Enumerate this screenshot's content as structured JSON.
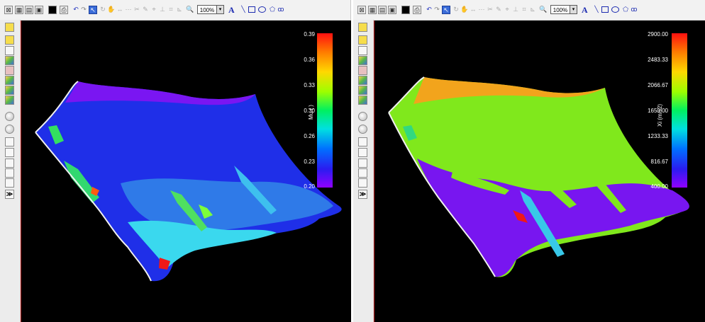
{
  "toolbar": {
    "zoom_value": "100%",
    "text_tool": "A"
  },
  "left_view": {
    "colorbar": {
      "title": "Mu ( )",
      "ticks": [
        "0.39",
        "0.36",
        "0.33",
        "0.30",
        "0.26",
        "0.23",
        "0.20"
      ]
    }
  },
  "right_view": {
    "colorbar": {
      "title": "Xi (m/s2)",
      "ticks": [
        "2900.00",
        "2483.33",
        "2066.67",
        "1650.00",
        "1233.33",
        "816.67",
        "400.00"
      ]
    }
  },
  "colors": {
    "viewport_bg": "#000000",
    "panel_bg": "#f0f0f0",
    "accent": "#3a6cd8"
  },
  "icons": [
    "print-icon",
    "undo-icon",
    "redo-icon",
    "select-arrow-icon",
    "rotate-icon",
    "pan-icon",
    "zoom-icon",
    "line-icon",
    "rect-icon",
    "ellipse-icon"
  ]
}
